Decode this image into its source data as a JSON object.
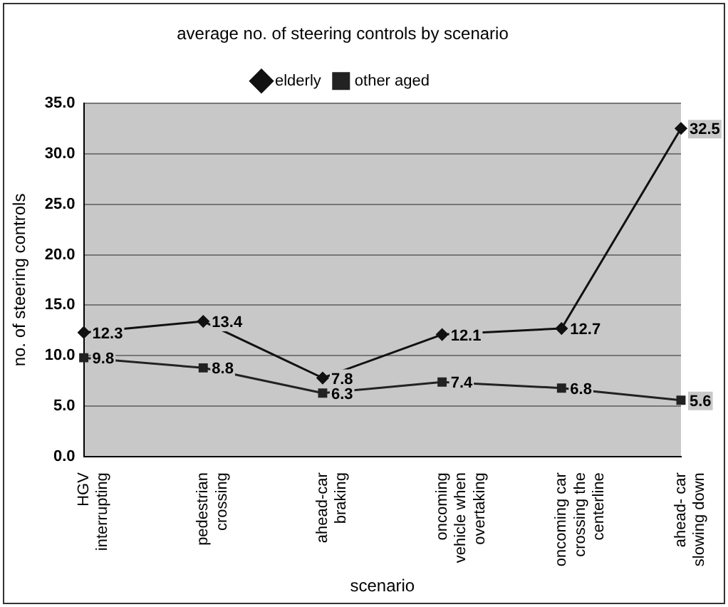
{
  "chart_data": {
    "type": "line",
    "title": "average no. of steering controls by scenario",
    "xlabel": "scenario",
    "ylabel": "no. of steering controls",
    "categories": [
      "HGV\ninterrupting",
      "pedestrian\ncrossing",
      "ahead-car\nbraking",
      "oncoming\nvehicle when\novertaking",
      "oncoming car\ncrossing the\ncenterline",
      "ahead- car\nslowing down"
    ],
    "series": [
      {
        "name": "elderly",
        "color": "#111111",
        "marker": "diamond",
        "values": [
          12.3,
          13.4,
          7.8,
          12.1,
          12.7,
          32.5
        ]
      },
      {
        "name": "other aged",
        "color": "#222222",
        "marker": "square",
        "values": [
          9.8,
          8.8,
          6.3,
          7.4,
          6.8,
          5.6
        ]
      }
    ],
    "ylim": [
      0,
      35
    ],
    "yticks": [
      {
        "value": 0,
        "label": "0.0"
      },
      {
        "value": 5,
        "label": "5.0"
      },
      {
        "value": 10,
        "label": "10.0"
      },
      {
        "value": 15,
        "label": "15.0"
      },
      {
        "value": 20,
        "label": "20.0"
      },
      {
        "value": 25,
        "label": "25.0"
      },
      {
        "value": 30,
        "label": "30.0"
      },
      {
        "value": 35,
        "label": "35.0"
      }
    ],
    "grid": "y",
    "legend": "top",
    "data_labels": true,
    "line_style": "solid"
  }
}
